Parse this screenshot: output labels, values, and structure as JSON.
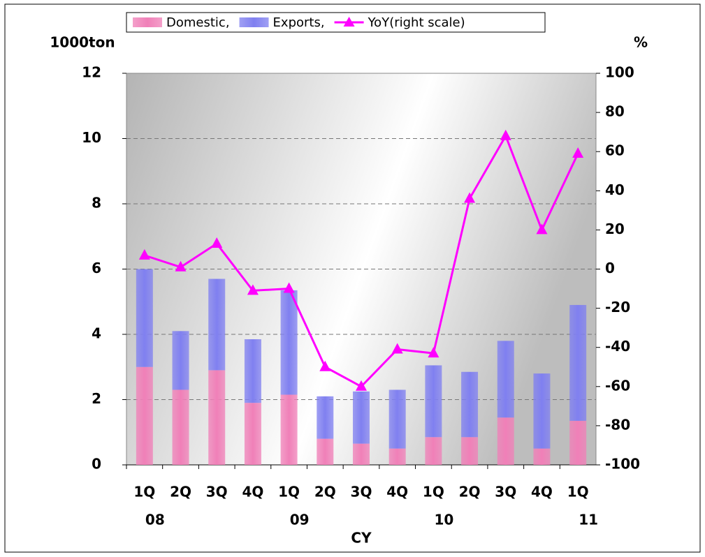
{
  "chart_data": {
    "type": "bar",
    "legend": "top",
    "y_label": "1000ton",
    "y2_label": "%",
    "x_label": "CY",
    "categories": [
      "1Q",
      "2Q",
      "3Q",
      "4Q",
      "1Q",
      "2Q",
      "3Q",
      "4Q",
      "1Q",
      "2Q",
      "3Q",
      "4Q",
      "1Q"
    ],
    "groups": [
      {
        "name": "08",
        "start": 0
      },
      {
        "name": "09",
        "start": 4
      },
      {
        "name": "10",
        "start": 8
      },
      {
        "name": "11",
        "start": 12
      }
    ],
    "series": [
      {
        "name": "Domestic,",
        "type": "bar",
        "stack": true,
        "color": "#f080b8",
        "values": [
          3.0,
          2.3,
          2.9,
          1.9,
          2.15,
          0.8,
          0.65,
          0.5,
          0.85,
          0.85,
          1.45,
          0.5,
          1.35
        ]
      },
      {
        "name": "Exports,",
        "type": "bar",
        "stack": true,
        "color": "#8080f0",
        "values": [
          3.0,
          1.8,
          2.8,
          1.95,
          3.2,
          1.3,
          1.6,
          1.8,
          2.2,
          2.0,
          2.35,
          2.3,
          3.55
        ]
      },
      {
        "name": "YoY(right scale)",
        "type": "line",
        "axis": "y2",
        "color": "#ff00ff",
        "values": [
          7,
          1,
          13,
          -11,
          -10,
          -50,
          -60,
          -41,
          -43,
          36,
          68,
          20,
          59
        ]
      }
    ],
    "ylim": [
      0,
      12
    ],
    "yticks": [
      0,
      2,
      4,
      6,
      8,
      10,
      12
    ],
    "y2lim": [
      -100,
      100
    ],
    "y2ticks": [
      -100,
      -80,
      -60,
      -40,
      -20,
      0,
      20,
      40,
      60,
      80,
      100
    ],
    "grid": true
  }
}
